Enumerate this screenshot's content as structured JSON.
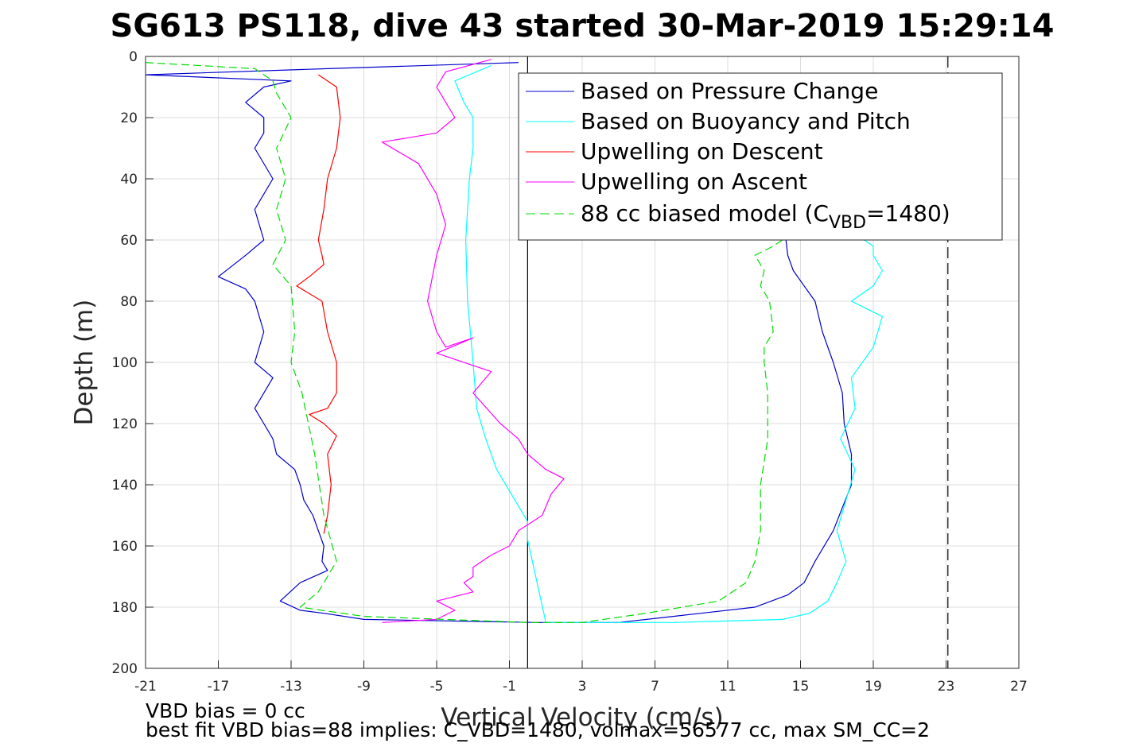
{
  "title": "SG613 PS118, dive 43 started 30-Mar-2019 15:29:14",
  "footer": {
    "line1": "VBD bias = 0 cc",
    "line2": "best fit VBD bias=88 implies: C_VBD=1480, volmax=56577 cc, max SM_CC=2"
  },
  "colors": {
    "pressure": "#0000cc",
    "buoyancy": "#00ffff",
    "upwell_descent": "#ff0000",
    "upwell_ascent": "#ff00ff",
    "model": "#00dd00"
  },
  "chart_data": {
    "type": "line",
    "title": "SG613 PS118, dive 43 started 30-Mar-2019 15:29:14",
    "xlabel": "Vertical Velocity (cm/s)",
    "ylabel": "Depth (m)",
    "xlim": [
      -21,
      27
    ],
    "ylim": [
      0,
      200
    ],
    "y_reversed": true,
    "grid": true,
    "xticks": [
      "-21",
      "-17",
      "-13",
      "-9",
      "-5",
      "-1",
      "3",
      "7",
      "11",
      "15",
      "19",
      "23",
      "27"
    ],
    "yticks": [
      "0",
      "20",
      "40",
      "60",
      "80",
      "100",
      "120",
      "140",
      "160",
      "180",
      "200"
    ],
    "legend_position": "top-right",
    "legend": [
      {
        "label": "Based on Pressure Change",
        "key": "pressure"
      },
      {
        "label": "Based on Buoyancy and Pitch",
        "key": "buoyancy"
      },
      {
        "label": "Upwelling on Descent",
        "key": "upwell_descent"
      },
      {
        "label": "Upwelling on Ascent",
        "key": "upwell_ascent"
      },
      {
        "label_main": "88 cc biased model (C",
        "label_sub": "VBD",
        "label_end": "=1480)",
        "key": "model"
      }
    ],
    "reference_lines": [
      {
        "x": 0,
        "style": "solid"
      },
      {
        "x": 23.1,
        "style": "dashed"
      }
    ],
    "series": [
      {
        "key": "pressure",
        "x": [
          -0.5,
          -11,
          -21,
          -13,
          -14.5,
          -15.5,
          -14.5,
          -14.5,
          -15,
          -14,
          -15,
          -14.5,
          -15.5,
          -17,
          -15.5,
          -15,
          -14.5,
          -15,
          -14,
          -15,
          -14.5,
          -14,
          -13.8,
          -12.8,
          -12.5,
          -12.3,
          -11.8,
          -11.5,
          -11.2,
          -11.3,
          -11,
          -12.5,
          -13.6,
          -12.5,
          -11.2,
          -9,
          0.5,
          5,
          8,
          12.5,
          14.3,
          15.2,
          15.8,
          16.8,
          17.8,
          17.8,
          17.4,
          17.3,
          16.8,
          16.2,
          15.8,
          15.2,
          14.6,
          14.3,
          14.2
        ],
        "y": [
          2,
          4,
          6,
          8,
          10,
          15,
          20,
          25,
          30,
          40,
          50,
          60,
          65,
          72,
          76,
          80,
          90,
          100,
          105,
          115,
          120,
          125,
          130,
          135,
          140,
          145,
          150,
          155,
          160,
          165,
          168,
          172,
          178,
          181,
          182,
          184,
          185,
          185,
          183,
          180,
          176,
          172,
          165,
          155,
          140,
          130,
          120,
          110,
          100,
          90,
          80,
          75,
          70,
          65,
          60
        ]
      },
      {
        "key": "buoyancy",
        "x": [
          -2,
          -4,
          -3.5,
          -3,
          -3,
          -3.2,
          -3.4,
          -3.3,
          -3,
          -2.8,
          -2.3,
          -1.7,
          -0.7,
          0,
          0,
          1,
          4,
          8,
          14,
          15.5,
          16.5,
          17,
          17.5,
          17,
          17.5,
          18,
          17.2,
          18,
          17.8,
          19,
          19.5,
          17.8,
          19,
          19.5,
          19,
          19,
          18.5
        ],
        "y": [
          3,
          8,
          15,
          20,
          30,
          40,
          60,
          80,
          100,
          115,
          125,
          135,
          145,
          152,
          158,
          185,
          185,
          185,
          184,
          182,
          178,
          172,
          165,
          155,
          145,
          135,
          125,
          115,
          105,
          95,
          85,
          80,
          75,
          70,
          65,
          62,
          60
        ]
      },
      {
        "key": "upwell_descent",
        "x": [
          -11.5,
          -10.5,
          -10.3,
          -10.5,
          -11,
          -11.2,
          -11.5,
          -11.3,
          -11.2,
          -12,
          -12.7,
          -11.3,
          -11,
          -10.5,
          -10.5,
          -11,
          -12,
          -11.2,
          -10.5,
          -11,
          -10.8,
          -11,
          -11.2
        ],
        "y": [
          6,
          10,
          20,
          30,
          40,
          50,
          60,
          65,
          68,
          72,
          75,
          80,
          90,
          100,
          110,
          115,
          117,
          120,
          124,
          130,
          140,
          150,
          156
        ]
      },
      {
        "key": "upwell_ascent",
        "x": [
          -2,
          -4.5,
          -5,
          -4,
          -5,
          -8,
          -6,
          -5,
          -4.5,
          -5,
          -5.5,
          -5,
          -4.5,
          -3,
          -5,
          -2,
          -3,
          -1.5,
          -0.5,
          0,
          1,
          2,
          1.3,
          0.8,
          -0.5,
          -1,
          -2,
          -3,
          -3,
          -3.5,
          -3,
          -5,
          -4,
          -5,
          -8
        ],
        "y": [
          1,
          5,
          10,
          20,
          25,
          28,
          35,
          45,
          55,
          65,
          80,
          90,
          95,
          92,
          97,
          103,
          110,
          120,
          125,
          130,
          135,
          138,
          143,
          150,
          155,
          160,
          163,
          167,
          170,
          172,
          175,
          178,
          181,
          184,
          185
        ]
      },
      {
        "key": "model",
        "x": [
          -21,
          -15,
          -14,
          -13.8,
          -13,
          -13.8,
          -13.3,
          -13.8,
          -13.3,
          -14,
          -13,
          -12.8,
          -13,
          -12.4,
          -11.7,
          -11.2,
          -10.5,
          -11.5,
          -12.5,
          -9,
          0,
          3,
          6.5,
          10.5,
          12,
          12.5,
          12.8,
          12.8,
          13.2,
          13.2,
          13,
          13,
          13.5,
          13.3,
          12.8,
          13,
          12.5,
          13.5,
          14
        ],
        "y": [
          2,
          4,
          8,
          12,
          20,
          30,
          40,
          50,
          60,
          68,
          75,
          90,
          100,
          110,
          130,
          150,
          165,
          175,
          180,
          183,
          185,
          185,
          182,
          178,
          172,
          165,
          155,
          140,
          125,
          110,
          100,
          95,
          90,
          80,
          75,
          70,
          65,
          62,
          60
        ]
      }
    ]
  }
}
